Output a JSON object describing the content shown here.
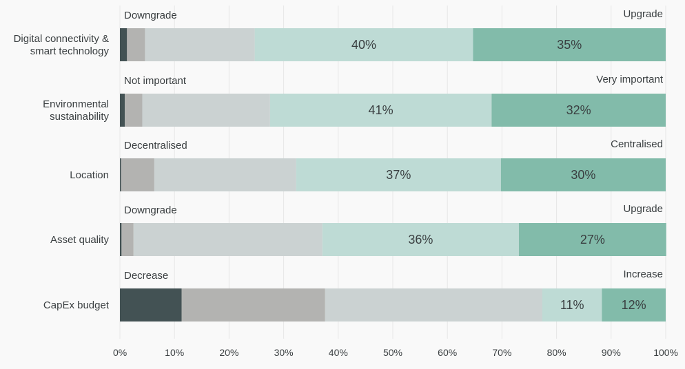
{
  "chart_data": {
    "type": "bar",
    "orientation": "horizontal",
    "stacked": true,
    "categories": [
      "Digital connectivity & smart technology",
      "Environmental sustainability",
      "Location",
      "Asset quality",
      "CapEx budget"
    ],
    "category_lines": [
      [
        "Digital connectivity &",
        "smart technology"
      ],
      [
        "Environmental",
        "sustainability"
      ],
      [
        "Location"
      ],
      [
        "Asset quality"
      ],
      [
        "CapEx budget"
      ]
    ],
    "scale_labels": [
      {
        "left": "Downgrade",
        "right": "Upgrade"
      },
      {
        "left": "Not important",
        "right": "Very important"
      },
      {
        "left": "Decentralised",
        "right": "Centralised"
      },
      {
        "left": "Downgrade",
        "right": "Upgrade"
      },
      {
        "left": "Decrease",
        "right": "Increase"
      }
    ],
    "series": [
      {
        "values": [
          1.3,
          0.9,
          0.2,
          0.3,
          11.3
        ],
        "color": "#435254"
      },
      {
        "values": [
          3.3,
          3.2,
          6.1,
          2.2,
          26.3
        ],
        "color": "#b3b3b1"
      },
      {
        "values": [
          20.1,
          23.4,
          26.0,
          34.6,
          39.8
        ],
        "color": "#cbd2d2"
      },
      {
        "values": [
          40.0,
          40.6,
          37.5,
          36.0,
          10.9
        ],
        "color": "#bedbd5"
      },
      {
        "values": [
          35.3,
          31.9,
          30.2,
          27.0,
          11.7
        ],
        "color": "#82bbaa"
      }
    ],
    "data_labels": [
      [
        "",
        "",
        "",
        "40%",
        "35%"
      ],
      [
        "",
        "",
        "",
        "41%",
        "32%"
      ],
      [
        "",
        "",
        "",
        "37%",
        "30%"
      ],
      [
        "",
        "",
        "",
        "36%",
        "27%"
      ],
      [
        "",
        "",
        "",
        "11%",
        "12%"
      ]
    ],
    "x_ticks": [
      "0%",
      "10%",
      "20%",
      "30%",
      "40%",
      "50%",
      "60%",
      "70%",
      "80%",
      "90%",
      "100%"
    ],
    "xlim": [
      0,
      100
    ],
    "grid": true,
    "legend": "none"
  }
}
